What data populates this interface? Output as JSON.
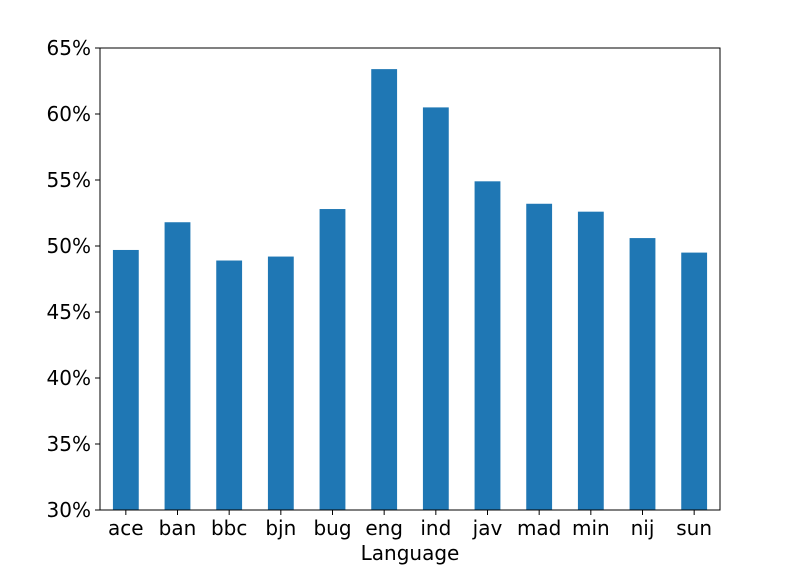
{
  "chart_data": {
    "type": "bar",
    "title": "",
    "xlabel": "Language",
    "ylabel": "",
    "categories": [
      "ace",
      "ban",
      "bbc",
      "bjn",
      "bug",
      "eng",
      "ind",
      "jav",
      "mad",
      "min",
      "nij",
      "sun"
    ],
    "values": [
      49.7,
      51.8,
      48.9,
      49.2,
      52.8,
      63.4,
      60.5,
      54.9,
      53.2,
      52.6,
      50.6,
      49.5
    ],
    "ylim": [
      30,
      65
    ],
    "y_ticks": [
      30,
      35,
      40,
      45,
      50,
      55,
      60,
      65
    ],
    "y_tick_format": "percent",
    "grid": false,
    "legend": "none",
    "bar_color": "#1f77b4"
  }
}
